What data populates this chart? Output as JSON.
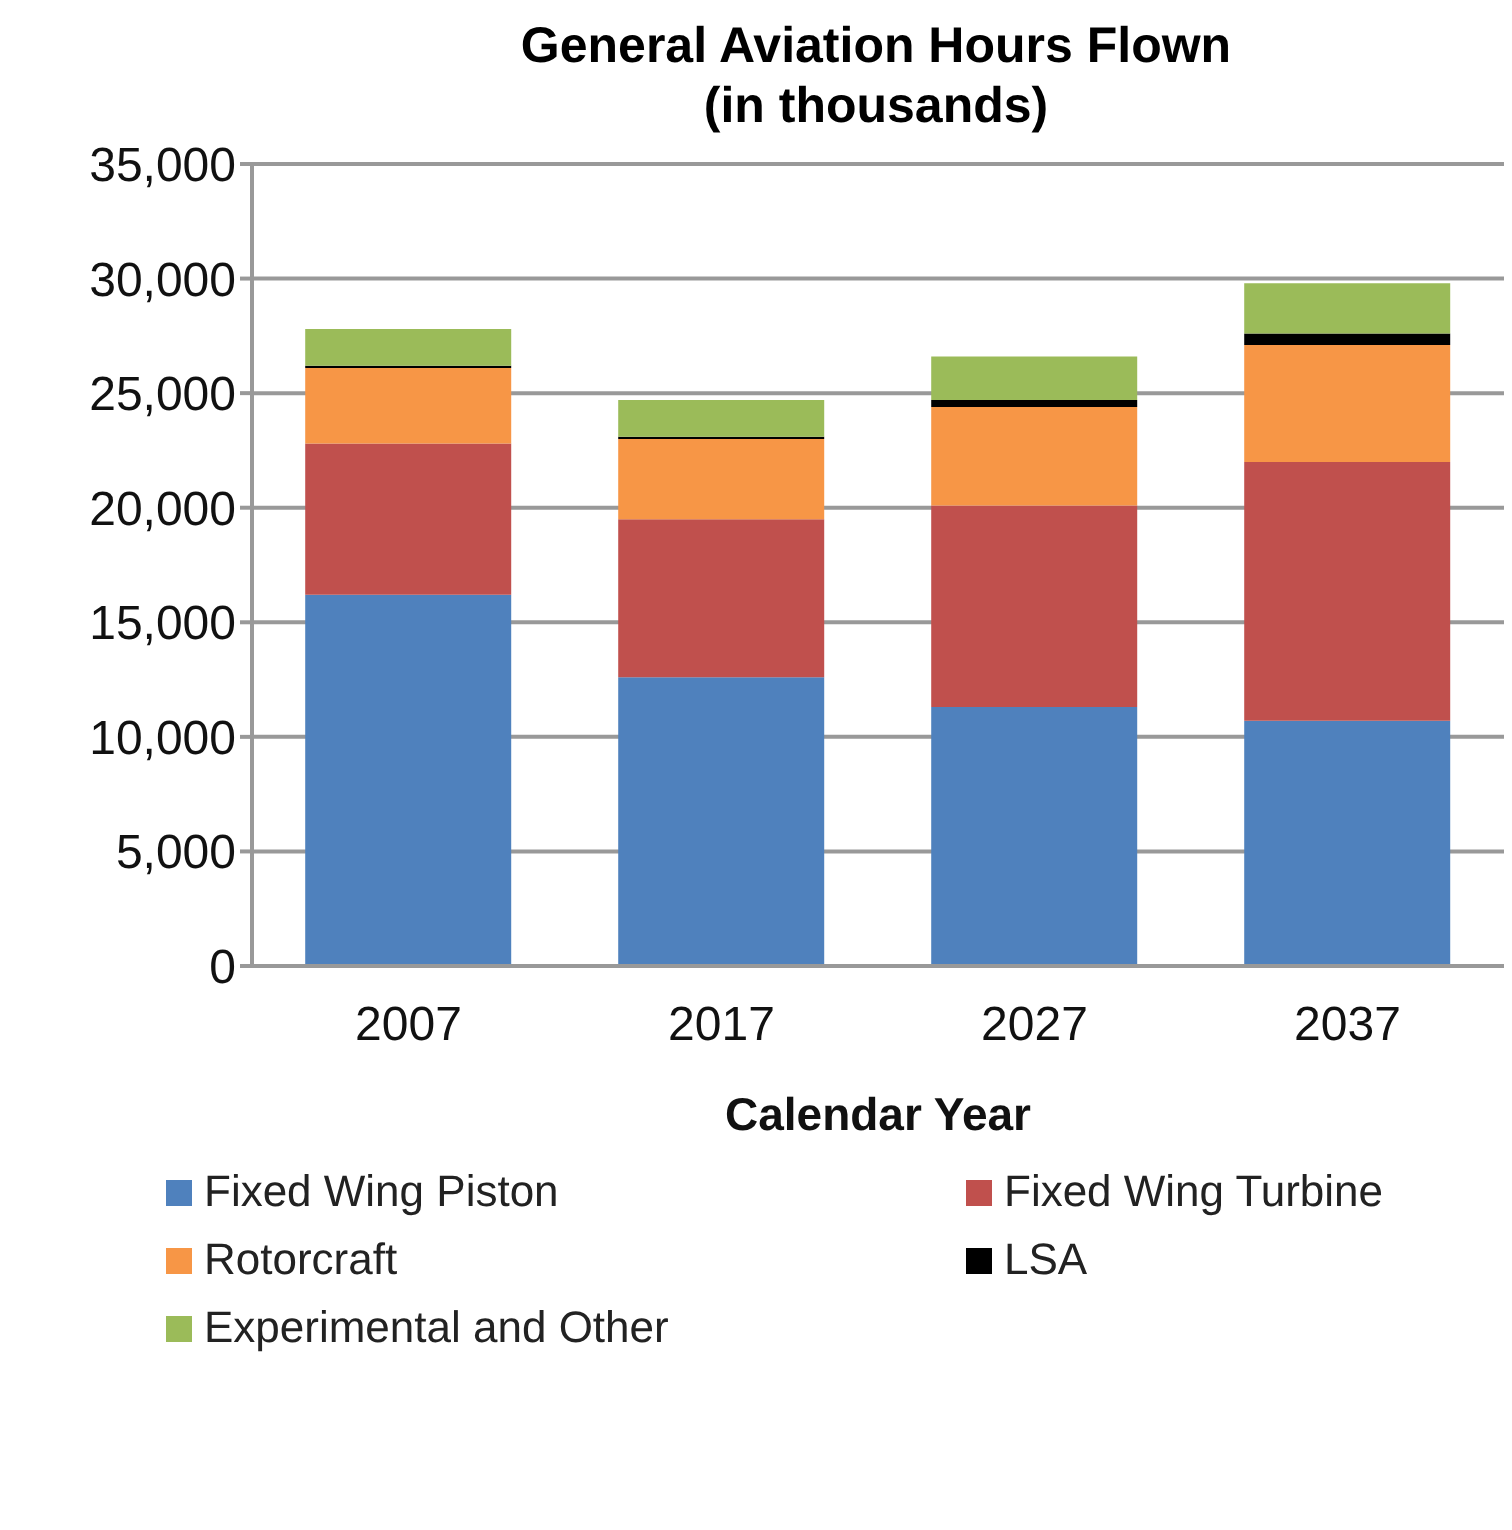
{
  "chart_data": {
    "type": "bar",
    "title": "General Aviation Hours Flown\n(in thousands)",
    "xlabel": "Calendar Year",
    "categories": [
      "2007",
      "2017",
      "2027",
      "2037"
    ],
    "stacked": true,
    "ylim": [
      0,
      35000
    ],
    "yticks": [
      {
        "value": 0,
        "label": "0"
      },
      {
        "value": 5000,
        "label": "5,000"
      },
      {
        "value": 10000,
        "label": "10,000"
      },
      {
        "value": 15000,
        "label": "15,000"
      },
      {
        "value": 20000,
        "label": "20,000"
      },
      {
        "value": 25000,
        "label": "25,000"
      },
      {
        "value": 30000,
        "label": "30,000"
      },
      {
        "value": 35000,
        "label": "35,000"
      }
    ],
    "grid": "y",
    "legend": "bottom",
    "series": [
      {
        "name": "Fixed Wing Piston",
        "color": "#4f81bd",
        "values": [
          16200,
          12600,
          11300,
          10700
        ]
      },
      {
        "name": "Fixed Wing Turbine",
        "color": "#c0504d",
        "values": [
          6600,
          6900,
          8800,
          11300
        ]
      },
      {
        "name": "Rotorcraft",
        "color": "#f79646",
        "values": [
          3300,
          3500,
          4300,
          5100
        ]
      },
      {
        "name": "LSA",
        "color": "#000000",
        "values": [
          100,
          100,
          300,
          500
        ]
      },
      {
        "name": "Experimental and Other",
        "color": "#9bbb59",
        "values": [
          1600,
          1600,
          1900,
          2200
        ]
      }
    ]
  }
}
